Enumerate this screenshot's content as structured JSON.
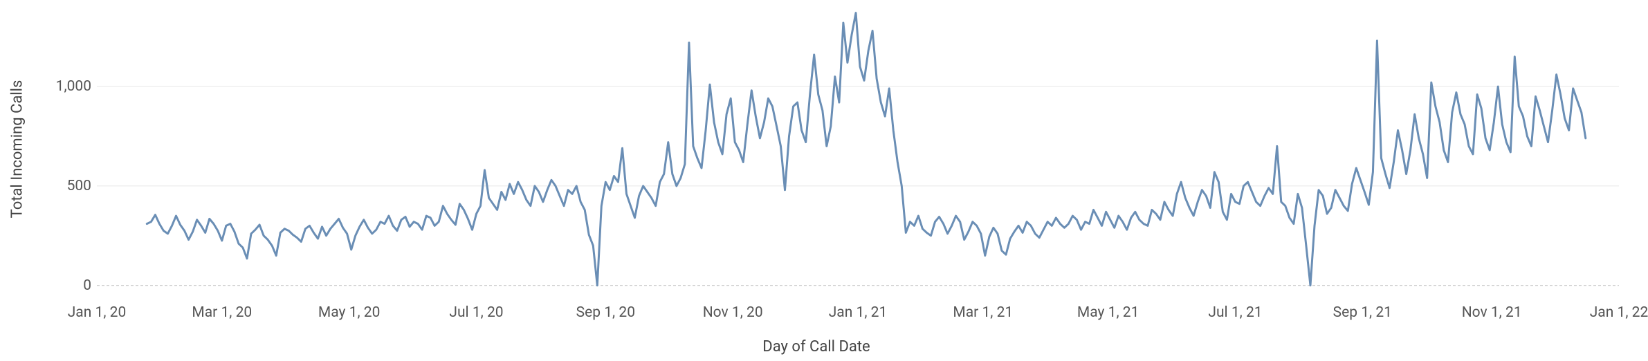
{
  "chart": {
    "type": "line",
    "background_color": "#ffffff",
    "grid_color": "#e8e8e8",
    "zero_line_color": "#bbbbbb",
    "text_color": "#444444",
    "tick_fontsize": 21,
    "axis_title_fontsize": 22,
    "x_axis_title": "Day of Call Date",
    "y_axis_title": "Total Incoming Calls",
    "y_min": -60,
    "y_max": 1400,
    "y_ticks": [
      0,
      500,
      1000
    ],
    "y_tick_labels": [
      "0",
      "500",
      "1,000"
    ],
    "x_domain_days": 730,
    "x_tick_positions": [
      0,
      60,
      121,
      182,
      244,
      305,
      365,
      425,
      485,
      546,
      607,
      669,
      730
    ],
    "x_tick_labels": [
      "Jan 1, 20",
      "Mar 1, 20",
      "May 1, 20",
      "Jul 1, 20",
      "Sep 1, 20",
      "Nov 1, 20",
      "Jan 1, 21",
      "Mar 1, 21",
      "May 1, 21",
      "Jul 1, 21",
      "Sep 1, 21",
      "Nov 1, 21",
      "Jan 1, 22"
    ],
    "series": {
      "color": "#6a8eb5",
      "line_width": 3,
      "data": [
        [
          24,
          310
        ],
        [
          26,
          320
        ],
        [
          28,
          355
        ],
        [
          30,
          310
        ],
        [
          32,
          275
        ],
        [
          34,
          260
        ],
        [
          36,
          300
        ],
        [
          38,
          350
        ],
        [
          40,
          305
        ],
        [
          42,
          275
        ],
        [
          44,
          230
        ],
        [
          46,
          270
        ],
        [
          48,
          330
        ],
        [
          50,
          300
        ],
        [
          52,
          265
        ],
        [
          54,
          335
        ],
        [
          56,
          310
        ],
        [
          58,
          275
        ],
        [
          60,
          225
        ],
        [
          62,
          300
        ],
        [
          64,
          310
        ],
        [
          66,
          270
        ],
        [
          68,
          210
        ],
        [
          70,
          190
        ],
        [
          72,
          135
        ],
        [
          74,
          260
        ],
        [
          76,
          280
        ],
        [
          78,
          305
        ],
        [
          80,
          250
        ],
        [
          82,
          230
        ],
        [
          84,
          200
        ],
        [
          86,
          150
        ],
        [
          88,
          265
        ],
        [
          90,
          285
        ],
        [
          92,
          275
        ],
        [
          94,
          255
        ],
        [
          96,
          240
        ],
        [
          98,
          220
        ],
        [
          100,
          285
        ],
        [
          102,
          300
        ],
        [
          104,
          265
        ],
        [
          106,
          235
        ],
        [
          108,
          295
        ],
        [
          110,
          250
        ],
        [
          112,
          285
        ],
        [
          114,
          310
        ],
        [
          116,
          335
        ],
        [
          118,
          290
        ],
        [
          120,
          260
        ],
        [
          122,
          180
        ],
        [
          124,
          250
        ],
        [
          126,
          295
        ],
        [
          128,
          330
        ],
        [
          130,
          290
        ],
        [
          132,
          260
        ],
        [
          134,
          280
        ],
        [
          136,
          320
        ],
        [
          138,
          310
        ],
        [
          140,
          350
        ],
        [
          142,
          300
        ],
        [
          144,
          275
        ],
        [
          146,
          330
        ],
        [
          148,
          345
        ],
        [
          150,
          295
        ],
        [
          152,
          320
        ],
        [
          154,
          310
        ],
        [
          156,
          280
        ],
        [
          158,
          350
        ],
        [
          160,
          340
        ],
        [
          162,
          300
        ],
        [
          164,
          320
        ],
        [
          166,
          400
        ],
        [
          168,
          360
        ],
        [
          170,
          330
        ],
        [
          172,
          305
        ],
        [
          174,
          410
        ],
        [
          176,
          380
        ],
        [
          178,
          335
        ],
        [
          180,
          280
        ],
        [
          182,
          360
        ],
        [
          184,
          400
        ],
        [
          186,
          580
        ],
        [
          188,
          440
        ],
        [
          190,
          410
        ],
        [
          192,
          380
        ],
        [
          194,
          470
        ],
        [
          196,
          430
        ],
        [
          198,
          510
        ],
        [
          200,
          460
        ],
        [
          202,
          520
        ],
        [
          204,
          480
        ],
        [
          206,
          430
        ],
        [
          208,
          400
        ],
        [
          210,
          500
        ],
        [
          212,
          470
        ],
        [
          214,
          420
        ],
        [
          216,
          480
        ],
        [
          218,
          530
        ],
        [
          220,
          500
        ],
        [
          222,
          450
        ],
        [
          224,
          400
        ],
        [
          226,
          480
        ],
        [
          228,
          460
        ],
        [
          230,
          500
        ],
        [
          232,
          420
        ],
        [
          234,
          380
        ],
        [
          236,
          255
        ],
        [
          238,
          200
        ],
        [
          240,
          0
        ],
        [
          242,
          400
        ],
        [
          244,
          520
        ],
        [
          246,
          480
        ],
        [
          248,
          550
        ],
        [
          250,
          520
        ],
        [
          252,
          690
        ],
        [
          254,
          460
        ],
        [
          256,
          400
        ],
        [
          258,
          340
        ],
        [
          260,
          450
        ],
        [
          262,
          500
        ],
        [
          264,
          470
        ],
        [
          266,
          440
        ],
        [
          268,
          400
        ],
        [
          270,
          520
        ],
        [
          272,
          560
        ],
        [
          274,
          720
        ],
        [
          276,
          560
        ],
        [
          278,
          500
        ],
        [
          280,
          540
        ],
        [
          282,
          610
        ],
        [
          284,
          1220
        ],
        [
          286,
          700
        ],
        [
          288,
          640
        ],
        [
          290,
          590
        ],
        [
          292,
          780
        ],
        [
          294,
          1010
        ],
        [
          296,
          820
        ],
        [
          298,
          720
        ],
        [
          300,
          660
        ],
        [
          302,
          860
        ],
        [
          304,
          940
        ],
        [
          306,
          720
        ],
        [
          308,
          680
        ],
        [
          310,
          620
        ],
        [
          312,
          810
        ],
        [
          314,
          980
        ],
        [
          316,
          850
        ],
        [
          318,
          740
        ],
        [
          320,
          820
        ],
        [
          322,
          940
        ],
        [
          324,
          900
        ],
        [
          326,
          800
        ],
        [
          328,
          700
        ],
        [
          330,
          480
        ],
        [
          332,
          750
        ],
        [
          334,
          900
        ],
        [
          336,
          920
        ],
        [
          338,
          780
        ],
        [
          340,
          720
        ],
        [
          342,
          960
        ],
        [
          344,
          1160
        ],
        [
          346,
          960
        ],
        [
          348,
          880
        ],
        [
          350,
          700
        ],
        [
          352,
          800
        ],
        [
          354,
          1050
        ],
        [
          356,
          920
        ],
        [
          358,
          1320
        ],
        [
          360,
          1120
        ],
        [
          362,
          1260
        ],
        [
          364,
          1370
        ],
        [
          366,
          1100
        ],
        [
          368,
          1030
        ],
        [
          370,
          1180
        ],
        [
          372,
          1280
        ],
        [
          374,
          1040
        ],
        [
          376,
          920
        ],
        [
          378,
          850
        ],
        [
          380,
          990
        ],
        [
          382,
          780
        ],
        [
          384,
          620
        ],
        [
          386,
          500
        ],
        [
          388,
          265
        ],
        [
          390,
          320
        ],
        [
          392,
          300
        ],
        [
          394,
          350
        ],
        [
          396,
          285
        ],
        [
          398,
          265
        ],
        [
          400,
          250
        ],
        [
          402,
          320
        ],
        [
          404,
          345
        ],
        [
          406,
          310
        ],
        [
          408,
          260
        ],
        [
          410,
          300
        ],
        [
          412,
          350
        ],
        [
          414,
          320
        ],
        [
          416,
          230
        ],
        [
          418,
          270
        ],
        [
          420,
          320
        ],
        [
          422,
          300
        ],
        [
          424,
          260
        ],
        [
          426,
          150
        ],
        [
          428,
          245
        ],
        [
          430,
          290
        ],
        [
          432,
          260
        ],
        [
          434,
          175
        ],
        [
          436,
          155
        ],
        [
          438,
          235
        ],
        [
          440,
          270
        ],
        [
          442,
          300
        ],
        [
          444,
          265
        ],
        [
          446,
          320
        ],
        [
          448,
          300
        ],
        [
          450,
          260
        ],
        [
          452,
          240
        ],
        [
          454,
          280
        ],
        [
          456,
          320
        ],
        [
          458,
          300
        ],
        [
          460,
          340
        ],
        [
          462,
          310
        ],
        [
          464,
          290
        ],
        [
          466,
          310
        ],
        [
          468,
          350
        ],
        [
          470,
          330
        ],
        [
          472,
          280
        ],
        [
          474,
          320
        ],
        [
          476,
          310
        ],
        [
          478,
          380
        ],
        [
          480,
          340
        ],
        [
          482,
          300
        ],
        [
          484,
          370
        ],
        [
          486,
          330
        ],
        [
          488,
          290
        ],
        [
          490,
          350
        ],
        [
          492,
          320
        ],
        [
          494,
          280
        ],
        [
          496,
          340
        ],
        [
          498,
          370
        ],
        [
          500,
          330
        ],
        [
          502,
          310
        ],
        [
          504,
          300
        ],
        [
          506,
          380
        ],
        [
          508,
          360
        ],
        [
          510,
          330
        ],
        [
          512,
          420
        ],
        [
          514,
          380
        ],
        [
          516,
          350
        ],
        [
          518,
          460
        ],
        [
          520,
          520
        ],
        [
          522,
          440
        ],
        [
          524,
          390
        ],
        [
          526,
          350
        ],
        [
          528,
          420
        ],
        [
          530,
          480
        ],
        [
          532,
          450
        ],
        [
          534,
          390
        ],
        [
          536,
          570
        ],
        [
          538,
          520
        ],
        [
          540,
          370
        ],
        [
          542,
          330
        ],
        [
          544,
          460
        ],
        [
          546,
          420
        ],
        [
          548,
          410
        ],
        [
          550,
          500
        ],
        [
          552,
          520
        ],
        [
          554,
          470
        ],
        [
          556,
          420
        ],
        [
          558,
          400
        ],
        [
          560,
          450
        ],
        [
          562,
          490
        ],
        [
          564,
          460
        ],
        [
          566,
          700
        ],
        [
          568,
          420
        ],
        [
          570,
          400
        ],
        [
          572,
          340
        ],
        [
          574,
          310
        ],
        [
          576,
          460
        ],
        [
          578,
          390
        ],
        [
          580,
          200
        ],
        [
          582,
          0
        ],
        [
          584,
          300
        ],
        [
          586,
          480
        ],
        [
          588,
          450
        ],
        [
          590,
          360
        ],
        [
          592,
          390
        ],
        [
          594,
          480
        ],
        [
          596,
          440
        ],
        [
          598,
          400
        ],
        [
          600,
          375
        ],
        [
          602,
          510
        ],
        [
          604,
          590
        ],
        [
          606,
          530
        ],
        [
          608,
          470
        ],
        [
          610,
          405
        ],
        [
          612,
          570
        ],
        [
          614,
          1230
        ],
        [
          616,
          640
        ],
        [
          618,
          560
        ],
        [
          620,
          490
        ],
        [
          622,
          620
        ],
        [
          624,
          780
        ],
        [
          626,
          680
        ],
        [
          628,
          560
        ],
        [
          630,
          680
        ],
        [
          632,
          860
        ],
        [
          634,
          740
        ],
        [
          636,
          660
        ],
        [
          638,
          540
        ],
        [
          640,
          1020
        ],
        [
          642,
          900
        ],
        [
          644,
          820
        ],
        [
          646,
          680
        ],
        [
          648,
          620
        ],
        [
          650,
          870
        ],
        [
          652,
          970
        ],
        [
          654,
          860
        ],
        [
          656,
          810
        ],
        [
          658,
          700
        ],
        [
          660,
          660
        ],
        [
          662,
          960
        ],
        [
          664,
          890
        ],
        [
          666,
          740
        ],
        [
          668,
          680
        ],
        [
          670,
          820
        ],
        [
          672,
          1000
        ],
        [
          674,
          810
        ],
        [
          676,
          720
        ],
        [
          678,
          670
        ],
        [
          680,
          1150
        ],
        [
          682,
          900
        ],
        [
          684,
          850
        ],
        [
          686,
          750
        ],
        [
          688,
          700
        ],
        [
          690,
          950
        ],
        [
          692,
          880
        ],
        [
          694,
          800
        ],
        [
          696,
          720
        ],
        [
          698,
          880
        ],
        [
          700,
          1060
        ],
        [
          702,
          960
        ],
        [
          704,
          840
        ],
        [
          706,
          780
        ],
        [
          708,
          990
        ],
        [
          710,
          930
        ],
        [
          712,
          870
        ],
        [
          714,
          740
        ]
      ]
    }
  }
}
